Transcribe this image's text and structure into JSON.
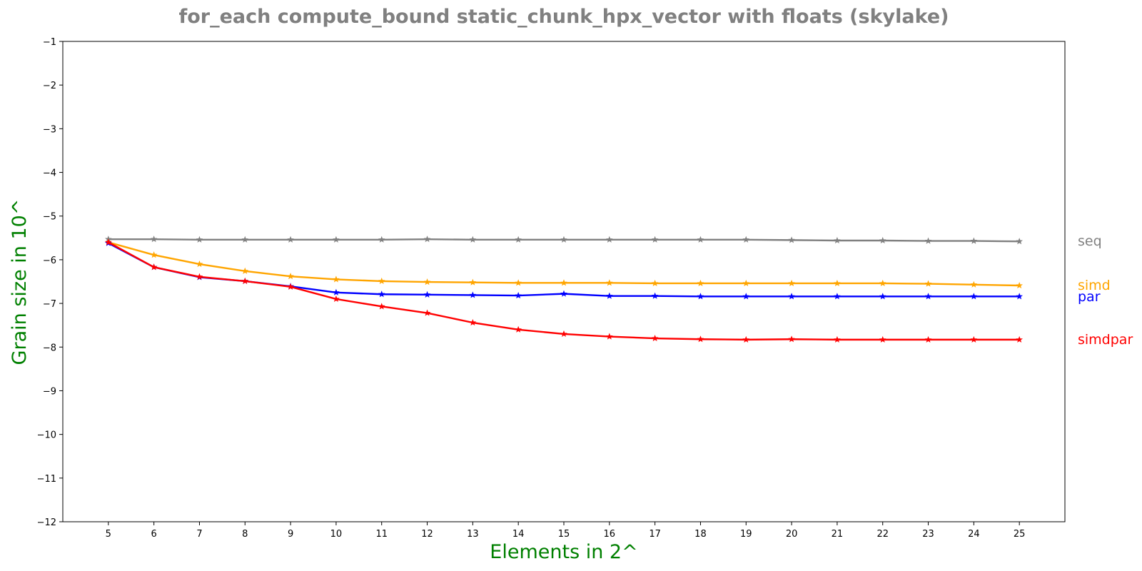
{
  "chart_data": {
    "type": "line",
    "title": "for_each compute_bound static_chunk_hpx_vector with floats  (skylake)",
    "xlabel": "Elements in 2^",
    "ylabel": "Grain size in 10^",
    "label_color": "#008000",
    "title_color": "#808080",
    "marker": "star",
    "grid": false,
    "legend": "inline labels at right end of lines",
    "x": [
      5,
      6,
      7,
      8,
      9,
      10,
      11,
      12,
      13,
      14,
      15,
      16,
      17,
      18,
      19,
      20,
      21,
      22,
      23,
      24,
      25
    ],
    "xlim": [
      4,
      26
    ],
    "ylim": [
      -12,
      -1
    ],
    "x_ticks": [
      "5",
      "6",
      "7",
      "8",
      "9",
      "10",
      "11",
      "12",
      "13",
      "14",
      "15",
      "16",
      "17",
      "18",
      "19",
      "20",
      "21",
      "22",
      "23",
      "24",
      "25"
    ],
    "y_ticks": [
      {
        "value": -1,
        "label": "−1"
      },
      {
        "value": -2,
        "label": "−2"
      },
      {
        "value": -3,
        "label": "−3"
      },
      {
        "value": -4,
        "label": "−4"
      },
      {
        "value": -5,
        "label": "−5"
      },
      {
        "value": -6,
        "label": "−6"
      },
      {
        "value": -7,
        "label": "−7"
      },
      {
        "value": -8,
        "label": "−8"
      },
      {
        "value": -9,
        "label": "−9"
      },
      {
        "value": -10,
        "label": "−10"
      },
      {
        "value": -11,
        "label": "−11"
      },
      {
        "value": -12,
        "label": "−12"
      }
    ],
    "series": [
      {
        "name": "seq",
        "color": "#808080",
        "values": [
          -5.53,
          -5.53,
          -5.54,
          -5.54,
          -5.54,
          -5.54,
          -5.54,
          -5.53,
          -5.54,
          -5.54,
          -5.54,
          -5.54,
          -5.54,
          -5.54,
          -5.54,
          -5.55,
          -5.56,
          -5.56,
          -5.57,
          -5.57,
          -5.58
        ]
      },
      {
        "name": "simd",
        "color": "#FFA500",
        "values": [
          -5.6,
          -5.89,
          -6.1,
          -6.26,
          -6.38,
          -6.45,
          -6.49,
          -6.51,
          -6.52,
          -6.53,
          -6.53,
          -6.53,
          -6.54,
          -6.54,
          -6.54,
          -6.54,
          -6.54,
          -6.54,
          -6.55,
          -6.57,
          -6.59
        ]
      },
      {
        "name": "par",
        "color": "#0000FF",
        "values": [
          -5.62,
          -6.17,
          -6.4,
          -6.49,
          -6.61,
          -6.75,
          -6.79,
          -6.8,
          -6.81,
          -6.82,
          -6.78,
          -6.83,
          -6.83,
          -6.84,
          -6.84,
          -6.84,
          -6.84,
          -6.84,
          -6.84,
          -6.84,
          -6.84
        ]
      },
      {
        "name": "simdpar",
        "color": "#FF0000",
        "values": [
          -5.6,
          -6.17,
          -6.39,
          -6.49,
          -6.62,
          -6.9,
          -7.07,
          -7.22,
          -7.44,
          -7.6,
          -7.7,
          -7.76,
          -7.8,
          -7.82,
          -7.83,
          -7.82,
          -7.83,
          -7.83,
          -7.83,
          -7.83,
          -7.83
        ]
      }
    ]
  }
}
